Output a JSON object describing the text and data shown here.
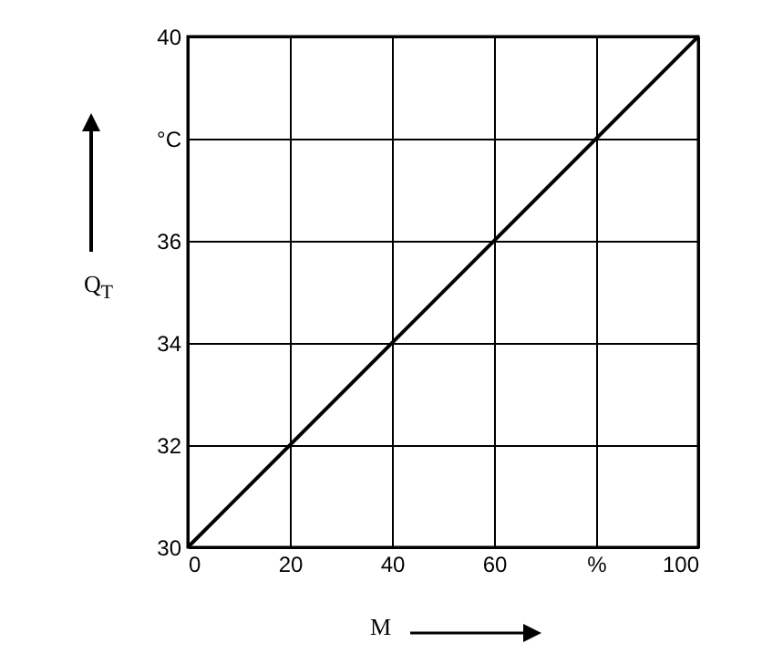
{
  "chart_data": {
    "type": "line",
    "xlabel": "M",
    "ylabel": "Q$_{T}$",
    "x": [
      0,
      100
    ],
    "series": [
      {
        "color": "#000000",
        "values": [
          30,
          40
        ]
      }
    ],
    "xlim": [
      0,
      100
    ],
    "xticks": [
      0,
      20,
      40,
      60,
      {
        "value": 80,
        "label": "%"
      },
      100
    ],
    "ylim": [
      30,
      40
    ],
    "yticks": [
      30,
      32,
      34,
      36,
      {
        "value": 38,
        "label": "°C"
      },
      40
    ],
    "grid": true,
    "marker": "none",
    "line_style": "solid"
  }
}
